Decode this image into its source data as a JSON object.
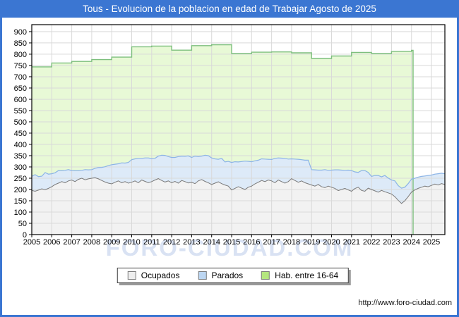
{
  "window": {
    "title": "Tous - Evolucion de la poblacion en edad de Trabajar Agosto de 2025"
  },
  "watermark": "FORO-CIUDAD.COM",
  "footer": {
    "url": "http://www.foro-ciudad.com"
  },
  "colors": {
    "title_bar": "#3b76d2",
    "frame_border": "#3b76d2",
    "plot_bg": "#ffffff",
    "grid": "#d9d9d9",
    "axis": "#000000",
    "watermark": "#d9e2f3",
    "hab_fill": "#e8f9d6",
    "hab_line": "#7dbf7d",
    "parados_fill": "#ddeaf8",
    "parados_line": "#8cb4e6",
    "ocupados_fill": "#f2f2f2",
    "ocupados_line": "#7a7a7a"
  },
  "legend": {
    "items": [
      {
        "label": "Ocupados",
        "color": "#efefef"
      },
      {
        "label": "Parados",
        "color": "#bcd6f2"
      },
      {
        "label": "Hab. entre 16-64",
        "color": "#b4e67e"
      }
    ]
  },
  "axes": {
    "y_ticks": [
      0,
      50,
      100,
      150,
      200,
      250,
      300,
      350,
      400,
      450,
      500,
      550,
      600,
      650,
      700,
      750,
      800,
      850,
      900
    ],
    "x_ticks": [
      2005,
      2006,
      2007,
      2008,
      2009,
      2010,
      2011,
      2012,
      2013,
      2014,
      2015,
      2016,
      2017,
      2018,
      2019,
      2020,
      2021,
      2022,
      2023,
      2024,
      2025
    ]
  },
  "chart_data": {
    "type": "area",
    "title": "Tous - Evolucion de la poblacion en edad de Trabajar Agosto de 2025",
    "xlabel": "",
    "ylabel": "",
    "xlim": [
      2005,
      2025.67
    ],
    "ylim": [
      0,
      931
    ],
    "grid": true,
    "legend_position": "bottom",
    "x_start": 2005,
    "x_step_years": 0.1666667,
    "series": [
      {
        "name": "Hab. entre 16-64",
        "mode": "annual-step",
        "years": [
          2005,
          2006,
          2007,
          2008,
          2009,
          2010,
          2011,
          2012,
          2013,
          2014,
          2015,
          2016,
          2017,
          2018,
          2019,
          2020,
          2021,
          2022,
          2023,
          2024
        ],
        "values": [
          744,
          761,
          768,
          776,
          787,
          833,
          836,
          818,
          838,
          842,
          803,
          809,
          810,
          806,
          781,
          792,
          808,
          803,
          812,
          817
        ],
        "end_x": 2024.08
      },
      {
        "name": "Parados",
        "mode": "monthly",
        "stacked_on": "Ocupados",
        "values": [
          62,
          74,
          60,
          56,
          76,
          63,
          58,
          52,
          56,
          48,
          55,
          50,
          42,
          48,
          38,
          35,
          45,
          40,
          38,
          42,
          50,
          58,
          68,
          78,
          85,
          80,
          76,
          88,
          82,
          92,
          100,
          98,
          108,
          96,
          104,
          110,
          102,
          96,
          100,
          112,
          118,
          108,
          112,
          106,
          118,
          108,
          112,
          120,
          110,
          122,
          108,
          104,
          116,
          120,
          118,
          108,
          100,
          112,
          102,
          110,
          122,
          118,
          110,
          118,
          126,
          115,
          108,
          102,
          98,
          96,
          100,
          92,
          95,
          108,
          98,
          104,
          110,
          100,
          88,
          95,
          102,
          94,
          100,
          105,
          68,
          72,
          64,
          74,
          80,
          70,
          76,
          82,
          92,
          86,
          80,
          88,
          92,
          74,
          66,
          88,
          92,
          70,
          58,
          68,
          74,
          60,
          72,
          66,
          62,
          70,
          65,
          68,
          60,
          58,
          58,
          52,
          50,
          48,
          45,
          50,
          46,
          44,
          50,
          46,
          48
        ]
      },
      {
        "name": "Ocupados",
        "mode": "monthly",
        "values": [
          196,
          192,
          197,
          203,
          199,
          205,
          212,
          222,
          228,
          235,
          230,
          238,
          242,
          235,
          245,
          250,
          243,
          247,
          250,
          252,
          247,
          240,
          233,
          228,
          225,
          232,
          238,
          230,
          235,
          228,
          232,
          238,
          230,
          242,
          236,
          230,
          235,
          242,
          248,
          240,
          233,
          238,
          230,
          236,
          228,
          240,
          235,
          229,
          232,
          226,
          238,
          244,
          236,
          230,
          222,
          228,
          234,
          226,
          220,
          215,
          198,
          205,
          212,
          206,
          200,
          210,
          215,
          225,
          232,
          240,
          235,
          242,
          238,
          230,
          242,
          235,
          228,
          235,
          248,
          240,
          232,
          238,
          230,
          225,
          220,
          215,
          222,
          212,
          208,
          215,
          210,
          205,
          195,
          200,
          205,
          198,
          192,
          204,
          210,
          196,
          192,
          206,
          200,
          194,
          188,
          196,
          190,
          185,
          180,
          168,
          152,
          138,
          150,
          168,
          188,
          198,
          205,
          210,
          215,
          212,
          218,
          224,
          220,
          226,
          222
        ]
      }
    ]
  }
}
